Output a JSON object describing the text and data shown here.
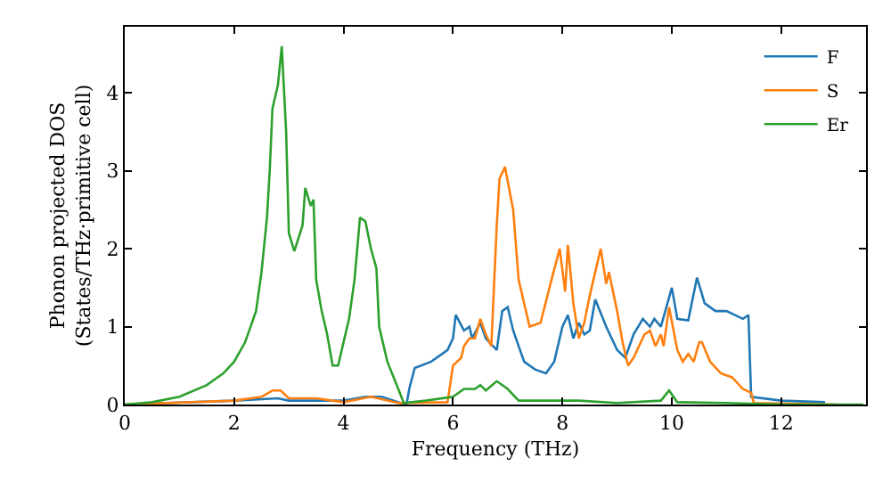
{
  "chart_data": {
    "type": "line",
    "xlabel": "Frequency (THz)",
    "ylabel": "Phonon projected DOS\n(States/THz·primitive cell)",
    "xlim": [
      0,
      13.55
    ],
    "ylim": [
      0,
      4.85
    ],
    "xticks": [
      0,
      2,
      4,
      6,
      8,
      10,
      12
    ],
    "yticks": [
      0,
      1,
      2,
      3,
      4
    ],
    "legend": "top right",
    "series": [
      {
        "name": "F",
        "color": "#1f77b4",
        "x": [
          0,
          2,
          2.8,
          3.0,
          4.0,
          4.4,
          4.7,
          5.0,
          5.15,
          5.2,
          5.3,
          5.6,
          5.9,
          6.0,
          6.05,
          6.2,
          6.3,
          6.35,
          6.5,
          6.6,
          6.8,
          6.9,
          7.0,
          7.1,
          7.2,
          7.3,
          7.5,
          7.7,
          7.85,
          8.0,
          8.1,
          8.2,
          8.3,
          8.4,
          8.5,
          8.6,
          8.8,
          9.0,
          9.15,
          9.3,
          9.47,
          9.6,
          9.68,
          9.8,
          10.0,
          10.1,
          10.3,
          10.46,
          10.6,
          10.8,
          11.0,
          11.3,
          11.4,
          11.45,
          12.0,
          12.8
        ],
        "values": [
          0,
          0.05,
          0.08,
          0.05,
          0.05,
          0.1,
          0.1,
          0.03,
          0.0,
          0.2,
          0.47,
          0.55,
          0.7,
          0.85,
          1.15,
          0.95,
          1.0,
          0.85,
          1.05,
          0.85,
          0.7,
          1.2,
          1.25,
          0.95,
          0.75,
          0.55,
          0.45,
          0.4,
          0.55,
          1.0,
          1.15,
          0.85,
          1.05,
          0.9,
          0.95,
          1.35,
          1.0,
          0.7,
          0.6,
          0.9,
          1.1,
          1.0,
          1.1,
          1.0,
          1.5,
          1.1,
          1.08,
          1.63,
          1.3,
          1.2,
          1.2,
          1.1,
          1.15,
          0.1,
          0.05,
          0.03
        ]
      },
      {
        "name": "S",
        "color": "#ff7f0e",
        "x": [
          0,
          2,
          2.5,
          2.7,
          2.85,
          3.0,
          3.5,
          4.0,
          4.5,
          5.0,
          5.9,
          6.0,
          6.15,
          6.2,
          6.3,
          6.4,
          6.5,
          6.6,
          6.7,
          6.8,
          6.85,
          6.95,
          7.1,
          7.2,
          7.4,
          7.6,
          7.8,
          7.95,
          8.05,
          8.1,
          8.2,
          8.3,
          8.4,
          8.5,
          8.7,
          8.8,
          8.85,
          9.0,
          9.1,
          9.2,
          9.3,
          9.5,
          9.6,
          9.7,
          9.8,
          9.85,
          9.95,
          10.1,
          10.2,
          10.3,
          10.4,
          10.5,
          10.55,
          10.7,
          10.9,
          11.1,
          11.3,
          11.45,
          11.5,
          13.0
        ],
        "values": [
          0,
          0.05,
          0.1,
          0.18,
          0.18,
          0.08,
          0.08,
          0.03,
          0.1,
          0.02,
          0.03,
          0.5,
          0.6,
          0.75,
          0.85,
          0.85,
          1.1,
          0.9,
          0.75,
          2.3,
          2.9,
          3.05,
          2.5,
          1.6,
          1.0,
          1.05,
          1.6,
          2.0,
          1.45,
          2.05,
          1.3,
          0.85,
          1.05,
          1.4,
          2.0,
          1.55,
          1.7,
          1.2,
          0.8,
          0.5,
          0.6,
          0.9,
          0.95,
          0.75,
          0.9,
          0.75,
          1.25,
          0.7,
          0.55,
          0.65,
          0.55,
          0.8,
          0.8,
          0.55,
          0.4,
          0.35,
          0.2,
          0.15,
          0.02,
          0
        ]
      },
      {
        "name": "Er",
        "color": "#2ca02c",
        "x": [
          0,
          0.5,
          1.0,
          1.5,
          1.8,
          2.0,
          2.2,
          2.4,
          2.5,
          2.6,
          2.65,
          2.7,
          2.8,
          2.87,
          2.95,
          3.0,
          3.1,
          3.25,
          3.3,
          3.4,
          3.45,
          3.5,
          3.6,
          3.7,
          3.8,
          3.9,
          4.0,
          4.1,
          4.2,
          4.3,
          4.4,
          4.5,
          4.6,
          4.65,
          4.8,
          5.0,
          5.1,
          5.5,
          6.0,
          6.2,
          6.4,
          6.5,
          6.6,
          6.8,
          7.0,
          7.2,
          8.0,
          8.3,
          9.0,
          9.8,
          9.95,
          10.1,
          11.0,
          12.0,
          13.5
        ],
        "values": [
          0,
          0.03,
          0.1,
          0.25,
          0.4,
          0.55,
          0.8,
          1.2,
          1.7,
          2.4,
          3.0,
          3.8,
          4.1,
          4.6,
          3.5,
          2.2,
          1.97,
          2.3,
          2.78,
          2.55,
          2.63,
          1.6,
          1.2,
          0.9,
          0.5,
          0.5,
          0.8,
          1.1,
          1.6,
          2.4,
          2.35,
          2.0,
          1.75,
          1.0,
          0.55,
          0.2,
          0.02,
          0.05,
          0.1,
          0.2,
          0.2,
          0.25,
          0.18,
          0.3,
          0.2,
          0.05,
          0.05,
          0.05,
          0.02,
          0.05,
          0.18,
          0.03,
          0.02,
          0.0,
          0
        ]
      }
    ]
  }
}
